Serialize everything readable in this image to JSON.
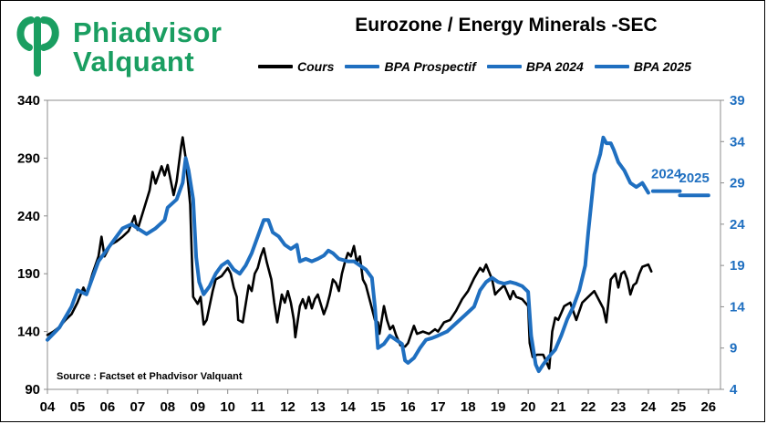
{
  "header": {
    "logo_line1": "Phiadvisor",
    "logo_line2": "Valquant",
    "logo_color": "#1a9e61"
  },
  "chart_data": {
    "type": "line",
    "title": "Eurozone / Energy Minerals -SEC",
    "source": "Source : Factset et Phadvisor Valquant",
    "x_ticks": [
      "04",
      "05",
      "06",
      "07",
      "08",
      "09",
      "10",
      "11",
      "12",
      "13",
      "14",
      "15",
      "16",
      "17",
      "18",
      "19",
      "20",
      "21",
      "22",
      "23",
      "24",
      "25",
      "26"
    ],
    "x_range": [
      2004,
      2026.4
    ],
    "y_left": {
      "ticks": [
        "340",
        "290",
        "240",
        "190",
        "140",
        "90"
      ],
      "range": [
        90,
        340
      ],
      "color": "#000000"
    },
    "y_right": {
      "ticks": [
        "39",
        "34",
        "29",
        "24",
        "19",
        "14",
        "9",
        "4"
      ],
      "range": [
        4,
        39
      ],
      "color": "#1f6fc0"
    },
    "grid": false,
    "legend_position": "top",
    "series": [
      {
        "name": "Cours",
        "axis": "left",
        "color": "#000000",
        "points": [
          [
            2004.0,
            137
          ],
          [
            2004.2,
            140
          ],
          [
            2004.4,
            144
          ],
          [
            2004.6,
            150
          ],
          [
            2004.8,
            155
          ],
          [
            2005.0,
            165
          ],
          [
            2005.2,
            178
          ],
          [
            2005.3,
            172
          ],
          [
            2005.5,
            190
          ],
          [
            2005.7,
            205
          ],
          [
            2005.8,
            222
          ],
          [
            2005.9,
            205
          ],
          [
            2006.1,
            215
          ],
          [
            2006.3,
            218
          ],
          [
            2006.5,
            222
          ],
          [
            2006.7,
            227
          ],
          [
            2006.9,
            240
          ],
          [
            2007.0,
            228
          ],
          [
            2007.2,
            245
          ],
          [
            2007.4,
            262
          ],
          [
            2007.5,
            278
          ],
          [
            2007.6,
            268
          ],
          [
            2007.8,
            283
          ],
          [
            2007.9,
            275
          ],
          [
            2008.0,
            284
          ],
          [
            2008.2,
            258
          ],
          [
            2008.3,
            270
          ],
          [
            2008.45,
            300
          ],
          [
            2008.5,
            308
          ],
          [
            2008.6,
            290
          ],
          [
            2008.75,
            250
          ],
          [
            2008.85,
            170
          ],
          [
            2009.0,
            164
          ],
          [
            2009.1,
            170
          ],
          [
            2009.2,
            146
          ],
          [
            2009.3,
            150
          ],
          [
            2009.5,
            175
          ],
          [
            2009.6,
            185
          ],
          [
            2009.8,
            188
          ],
          [
            2010.0,
            195
          ],
          [
            2010.1,
            190
          ],
          [
            2010.2,
            178
          ],
          [
            2010.3,
            170
          ],
          [
            2010.35,
            150
          ],
          [
            2010.5,
            148
          ],
          [
            2010.7,
            180
          ],
          [
            2010.8,
            175
          ],
          [
            2010.9,
            190
          ],
          [
            2011.0,
            195
          ],
          [
            2011.1,
            205
          ],
          [
            2011.2,
            212
          ],
          [
            2011.3,
            200
          ],
          [
            2011.45,
            185
          ],
          [
            2011.55,
            165
          ],
          [
            2011.65,
            148
          ],
          [
            2011.8,
            172
          ],
          [
            2011.9,
            165
          ],
          [
            2012.0,
            175
          ],
          [
            2012.1,
            165
          ],
          [
            2012.2,
            150
          ],
          [
            2012.25,
            135
          ],
          [
            2012.4,
            162
          ],
          [
            2012.5,
            168
          ],
          [
            2012.6,
            160
          ],
          [
            2012.7,
            170
          ],
          [
            2012.8,
            160
          ],
          [
            2012.9,
            168
          ],
          [
            2013.0,
            172
          ],
          [
            2013.2,
            155
          ],
          [
            2013.3,
            162
          ],
          [
            2013.4,
            172
          ],
          [
            2013.5,
            185
          ],
          [
            2013.6,
            182
          ],
          [
            2013.7,
            175
          ],
          [
            2013.8,
            190
          ],
          [
            2013.9,
            200
          ],
          [
            2014.0,
            208
          ],
          [
            2014.1,
            205
          ],
          [
            2014.2,
            214
          ],
          [
            2014.3,
            200
          ],
          [
            2014.4,
            205
          ],
          [
            2014.5,
            185
          ],
          [
            2014.6,
            180
          ],
          [
            2014.7,
            170
          ],
          [
            2014.8,
            160
          ],
          [
            2014.9,
            150
          ],
          [
            2015.0,
            148
          ],
          [
            2015.05,
            138
          ],
          [
            2015.2,
            162
          ],
          [
            2015.3,
            150
          ],
          [
            2015.4,
            142
          ],
          [
            2015.5,
            145
          ],
          [
            2015.6,
            137
          ],
          [
            2015.75,
            128
          ],
          [
            2015.9,
            127
          ],
          [
            2016.0,
            130
          ],
          [
            2016.2,
            145
          ],
          [
            2016.3,
            138
          ],
          [
            2016.5,
            140
          ],
          [
            2016.7,
            138
          ],
          [
            2016.9,
            142
          ],
          [
            2017.0,
            140
          ],
          [
            2017.2,
            148
          ],
          [
            2017.4,
            150
          ],
          [
            2017.6,
            158
          ],
          [
            2017.8,
            168
          ],
          [
            2018.0,
            175
          ],
          [
            2018.2,
            186
          ],
          [
            2018.4,
            195
          ],
          [
            2018.5,
            192
          ],
          [
            2018.6,
            198
          ],
          [
            2018.8,
            185
          ],
          [
            2018.9,
            172
          ],
          [
            2019.0,
            175
          ],
          [
            2019.2,
            180
          ],
          [
            2019.4,
            168
          ],
          [
            2019.5,
            175
          ],
          [
            2019.6,
            170
          ],
          [
            2019.8,
            168
          ],
          [
            2020.0,
            162
          ],
          [
            2020.05,
            130
          ],
          [
            2020.15,
            118
          ],
          [
            2020.3,
            120
          ],
          [
            2020.5,
            120
          ],
          [
            2020.7,
            108
          ],
          [
            2020.8,
            140
          ],
          [
            2020.9,
            152
          ],
          [
            2021.0,
            150
          ],
          [
            2021.2,
            162
          ],
          [
            2021.4,
            165
          ],
          [
            2021.6,
            150
          ],
          [
            2021.8,
            165
          ],
          [
            2022.0,
            170
          ],
          [
            2022.2,
            175
          ],
          [
            2022.4,
            165
          ],
          [
            2022.5,
            160
          ],
          [
            2022.6,
            148
          ],
          [
            2022.75,
            185
          ],
          [
            2022.9,
            190
          ],
          [
            2023.0,
            178
          ],
          [
            2023.1,
            190
          ],
          [
            2023.2,
            192
          ],
          [
            2023.3,
            185
          ],
          [
            2023.4,
            172
          ],
          [
            2023.5,
            180
          ],
          [
            2023.6,
            182
          ],
          [
            2023.7,
            190
          ],
          [
            2023.8,
            196
          ],
          [
            2024.0,
            198
          ],
          [
            2024.1,
            192
          ]
        ]
      },
      {
        "name": "BPA Prospectif",
        "axis": "right",
        "color": "#1f6fc0",
        "points": [
          [
            2004.0,
            10.0
          ],
          [
            2004.4,
            11.5
          ],
          [
            2004.8,
            14.0
          ],
          [
            2005.0,
            16.0
          ],
          [
            2005.3,
            15.5
          ],
          [
            2005.5,
            17.5
          ],
          [
            2005.7,
            19.5
          ],
          [
            2006.0,
            21.0
          ],
          [
            2006.3,
            22.5
          ],
          [
            2006.5,
            23.5
          ],
          [
            2006.8,
            24.0
          ],
          [
            2007.0,
            23.5
          ],
          [
            2007.3,
            22.8
          ],
          [
            2007.6,
            23.5
          ],
          [
            2007.9,
            24.5
          ],
          [
            2008.0,
            26.0
          ],
          [
            2008.3,
            27.0
          ],
          [
            2008.5,
            29.0
          ],
          [
            2008.6,
            32.0
          ],
          [
            2008.7,
            30.5
          ],
          [
            2008.85,
            27.0
          ],
          [
            2008.95,
            20.0
          ],
          [
            2009.05,
            17.0
          ],
          [
            2009.2,
            15.5
          ],
          [
            2009.4,
            16.5
          ],
          [
            2009.6,
            18.0
          ],
          [
            2009.8,
            19.0
          ],
          [
            2010.0,
            19.5
          ],
          [
            2010.2,
            18.5
          ],
          [
            2010.4,
            18.0
          ],
          [
            2010.6,
            19.0
          ],
          [
            2010.8,
            20.5
          ],
          [
            2011.0,
            22.5
          ],
          [
            2011.2,
            24.5
          ],
          [
            2011.35,
            24.5
          ],
          [
            2011.5,
            23.0
          ],
          [
            2011.7,
            22.5
          ],
          [
            2011.9,
            21.5
          ],
          [
            2012.1,
            21.0
          ],
          [
            2012.3,
            21.5
          ],
          [
            2012.4,
            19.5
          ],
          [
            2012.6,
            19.8
          ],
          [
            2012.8,
            19.5
          ],
          [
            2013.0,
            19.8
          ],
          [
            2013.2,
            20.2
          ],
          [
            2013.35,
            20.8
          ],
          [
            2013.5,
            20.5
          ],
          [
            2013.7,
            19.8
          ],
          [
            2014.0,
            19.5
          ],
          [
            2014.2,
            19.5
          ],
          [
            2014.4,
            19.0
          ],
          [
            2014.6,
            18.5
          ],
          [
            2014.8,
            17.5
          ],
          [
            2014.9,
            14.0
          ],
          [
            2015.0,
            9.0
          ],
          [
            2015.2,
            9.5
          ],
          [
            2015.4,
            10.5
          ],
          [
            2015.6,
            10.0
          ],
          [
            2015.8,
            9.5
          ],
          [
            2015.9,
            7.5
          ],
          [
            2016.0,
            7.2
          ],
          [
            2016.2,
            7.8
          ],
          [
            2016.4,
            9.0
          ],
          [
            2016.6,
            10.0
          ],
          [
            2016.8,
            10.2
          ],
          [
            2017.0,
            10.5
          ],
          [
            2017.3,
            11.0
          ],
          [
            2017.6,
            12.0
          ],
          [
            2017.9,
            13.0
          ],
          [
            2018.2,
            14.0
          ],
          [
            2018.4,
            16.0
          ],
          [
            2018.6,
            17.0
          ],
          [
            2018.8,
            17.5
          ],
          [
            2019.0,
            17.0
          ],
          [
            2019.2,
            16.8
          ],
          [
            2019.4,
            17.0
          ],
          [
            2019.6,
            16.8
          ],
          [
            2019.8,
            16.5
          ],
          [
            2020.0,
            15.8
          ],
          [
            2020.1,
            10.5
          ],
          [
            2020.25,
            7.0
          ],
          [
            2020.35,
            6.2
          ],
          [
            2020.5,
            7.0
          ],
          [
            2020.7,
            8.0
          ],
          [
            2020.9,
            8.8
          ],
          [
            2021.1,
            10.5
          ],
          [
            2021.3,
            12.5
          ],
          [
            2021.5,
            14.0
          ],
          [
            2021.7,
            16.0
          ],
          [
            2021.9,
            19.0
          ],
          [
            2022.0,
            23.0
          ],
          [
            2022.2,
            30.0
          ],
          [
            2022.4,
            32.5
          ],
          [
            2022.5,
            34.5
          ],
          [
            2022.6,
            33.8
          ],
          [
            2022.75,
            33.8
          ],
          [
            2022.85,
            33.0
          ],
          [
            2023.0,
            31.5
          ],
          [
            2023.2,
            30.5
          ],
          [
            2023.4,
            29.0
          ],
          [
            2023.6,
            28.5
          ],
          [
            2023.8,
            29.0
          ],
          [
            2024.0,
            27.8
          ]
        ]
      },
      {
        "name": "BPA 2024",
        "axis": "right",
        "color": "#1f6fc0",
        "points": [
          [
            2024.15,
            28.0
          ],
          [
            2025.05,
            28.0
          ]
        ],
        "label": "2024"
      },
      {
        "name": "BPA 2025",
        "axis": "right",
        "color": "#1f6fc0",
        "points": [
          [
            2025.05,
            27.5
          ],
          [
            2026.0,
            27.5
          ]
        ],
        "label": "2025"
      }
    ]
  }
}
